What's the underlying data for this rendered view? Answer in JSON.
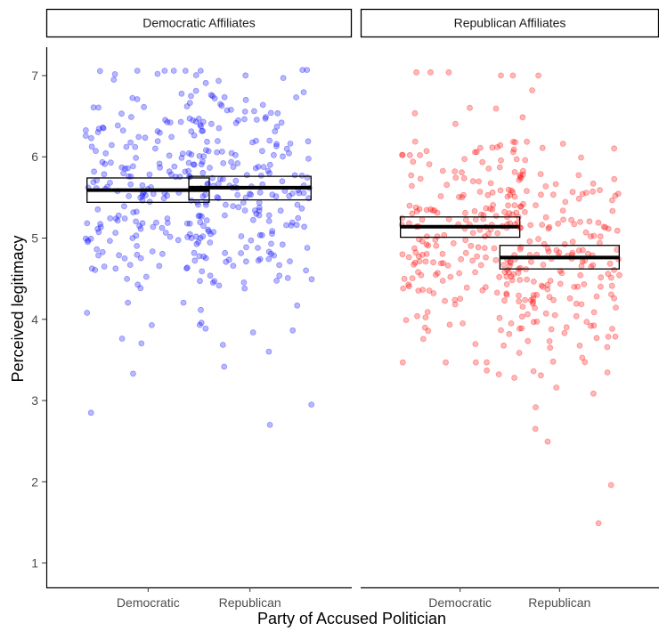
{
  "chart_data": {
    "type": "scatter",
    "xlabel": "Party of Accused Politician",
    "ylabel": "Perceived legitimacy",
    "ylim": [
      0.7,
      7.35
    ],
    "yticks": [
      1,
      2,
      3,
      4,
      5,
      6,
      7
    ],
    "grid": false,
    "categories": [
      "Democratic",
      "Republican"
    ],
    "panels": [
      {
        "title": "Democratic Affiliates",
        "color": "#0000ff",
        "groups": [
          {
            "category": "Democratic",
            "mean": 5.59,
            "ci": [
              5.44,
              5.74
            ],
            "n": 200,
            "min": 2.85,
            "second_min": 3.33,
            "max": 7.06
          },
          {
            "category": "Republican",
            "mean": 5.62,
            "ci": [
              5.47,
              5.76
            ],
            "n": 200,
            "min": 2.7,
            "second_min": 2.95,
            "max": 7.07
          }
        ]
      },
      {
        "title": "Republican Affiliates",
        "color": "#ff0000",
        "groups": [
          {
            "category": "Democratic",
            "mean": 5.14,
            "ci": [
              5.01,
              5.26
            ],
            "n": 200,
            "min": 3.28,
            "second_min": 3.37,
            "max": 7.04
          },
          {
            "category": "Republican",
            "mean": 4.76,
            "ci": [
              4.62,
              4.91
            ],
            "n": 200,
            "min": 1.49,
            "second_min": 1.96,
            "max": 7.0
          }
        ]
      }
    ]
  }
}
